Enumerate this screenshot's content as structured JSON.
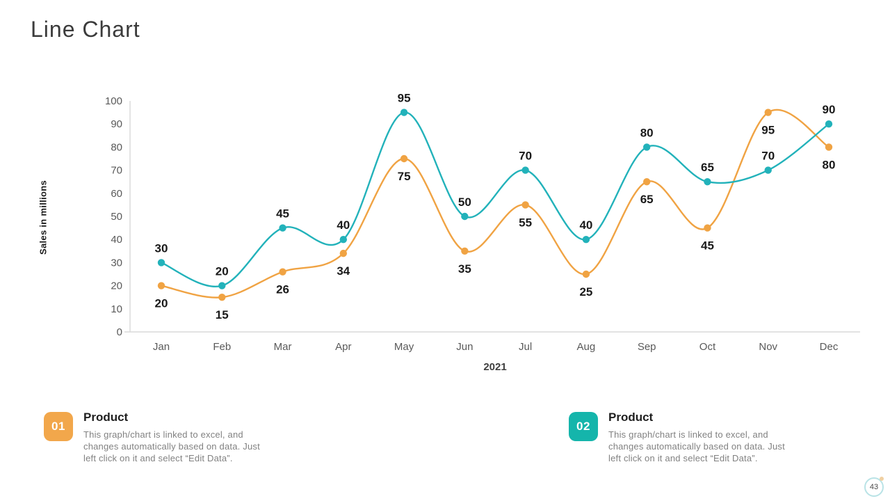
{
  "page": {
    "title": "Line Chart",
    "page_number": "43"
  },
  "chart_data": {
    "type": "line",
    "title": "",
    "x": [
      "Jan",
      "Feb",
      "Mar",
      "Apr",
      "May",
      "Jun",
      "Jul",
      "Aug",
      "Sep",
      "Oct",
      "Nov",
      "Dec"
    ],
    "xlabel": "2021",
    "ylabel": "Sales in millions",
    "ylim": [
      0,
      100
    ],
    "yticks": [
      0,
      10,
      20,
      30,
      40,
      50,
      60,
      70,
      80,
      90,
      100
    ],
    "grid": false,
    "legend_position": "none",
    "axis_color": "#d9d9d9",
    "tick_label_color": "#595959",
    "data_label_color": "#1a1a1a",
    "series": [
      {
        "name": "Product 01",
        "color": "#F0A343",
        "label_position": "below",
        "values": [
          20,
          15,
          26,
          34,
          75,
          35,
          55,
          25,
          65,
          45,
          95,
          80
        ]
      },
      {
        "name": "Product 02",
        "color": "#22B2BA",
        "label_position": "above",
        "values": [
          30,
          20,
          45,
          40,
          95,
          50,
          70,
          40,
          80,
          65,
          70,
          90
        ]
      }
    ]
  },
  "legends": [
    {
      "number": "01",
      "color": "#F2A74B",
      "title": "Product",
      "lines": [
        "This graph/chart is linked to excel, and",
        "changes automatically based on data. Just",
        "left click on it and select “Edit Data”."
      ]
    },
    {
      "number": "02",
      "color": "#15B5AB",
      "title": "Product",
      "lines": [
        "This graph/chart is linked to excel, and",
        "changes automatically based on data. Just",
        "left click on it and select “Edit Data”."
      ]
    }
  ]
}
